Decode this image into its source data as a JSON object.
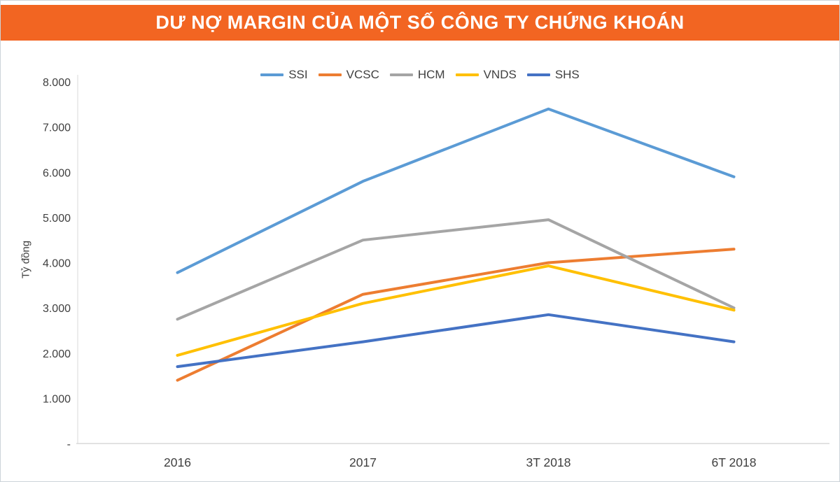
{
  "header": {
    "title": "DƯ NỢ MARGIN CỦA MỘT SỐ CÔNG TY CHỨNG KHOÁN",
    "background": "#F26522",
    "text_color": "#FFFFFF"
  },
  "chart_data": {
    "type": "line",
    "title": "DƯ NỢ MARGIN CỦA MỘT SỐ CÔNG TY CHỨNG KHOÁN",
    "categories": [
      "2016",
      "2017",
      "3T 2018",
      "6T 2018"
    ],
    "series": [
      {
        "name": "SSI",
        "color": "#5B9BD5",
        "values": [
          3780,
          5800,
          7400,
          5900
        ]
      },
      {
        "name": "VCSC",
        "color": "#ED7D31",
        "values": [
          1400,
          3300,
          4000,
          4300
        ]
      },
      {
        "name": "HCM",
        "color": "#A5A5A5",
        "values": [
          2750,
          4500,
          4950,
          3000
        ]
      },
      {
        "name": "VNDS",
        "color": "#FFC000",
        "values": [
          1950,
          3100,
          3930,
          2950
        ]
      },
      {
        "name": "SHS",
        "color": "#4472C4",
        "values": [
          1700,
          2250,
          2850,
          2250
        ]
      }
    ],
    "xlabel": "",
    "ylabel": "Tỷ đồng",
    "ylim": [
      0,
      8000
    ],
    "ytick_interval": 1000,
    "ytick_labels": [
      "-",
      "1.000",
      "2.000",
      "3.000",
      "4.000",
      "5.000",
      "6.000",
      "7.000",
      "8.000"
    ],
    "legend_position": "top-center",
    "grid": false,
    "axis_color": "#D9D9D9",
    "tick_label_color": "#404040"
  }
}
